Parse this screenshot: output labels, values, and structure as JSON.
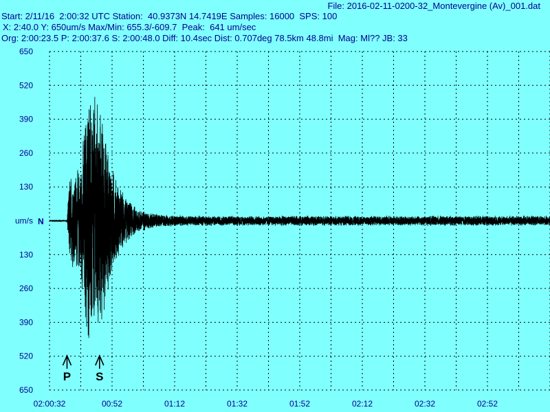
{
  "header": {
    "file_line": "File: 2016-02-11-0200-32_Montevergine (Av)_001.dat",
    "start_line": "Start: 2/11/16  2:00:32 UTC Station:  40.9373N 14.7419E Samples: 16000  SPS: 100",
    "xy_line": "X: 2:40.0 Y: 650um/s Max/Min: 655.3/-609.7  Peak:  641 um/sec",
    "org_line": "Org: 2:00:23.5 P: 2:00:37.6 S: 2:00:48.0 Diff: 10.4sec Dist: 0.707deg 78.5km 48.8mi  Mag: Ml?? JB: 33"
  },
  "chart_data": {
    "type": "line",
    "title": "",
    "xlabel": "",
    "ylabel": "um/s",
    "component_label": "N",
    "x_range_seconds": [
      0,
      160
    ],
    "y_range": [
      -650,
      650
    ],
    "y_ticks": [
      "650",
      "520",
      "390",
      "260",
      "130",
      "um/s",
      "130",
      "260",
      "390",
      "520",
      "650"
    ],
    "x_ticks": [
      "02:00:32",
      "00:52",
      "01:12",
      "01:32",
      "01:52",
      "02:12",
      "02:32",
      "02:52"
    ],
    "markers": [
      {
        "label": "P",
        "time": "2:00:37.6"
      },
      {
        "label": "S",
        "time": "2:00:48.0"
      }
    ],
    "max": 655.3,
    "min": -609.7,
    "peak": 641,
    "grid": true,
    "line_color": "#000000",
    "background": "#80FFFF",
    "text_color": "#00008B"
  }
}
